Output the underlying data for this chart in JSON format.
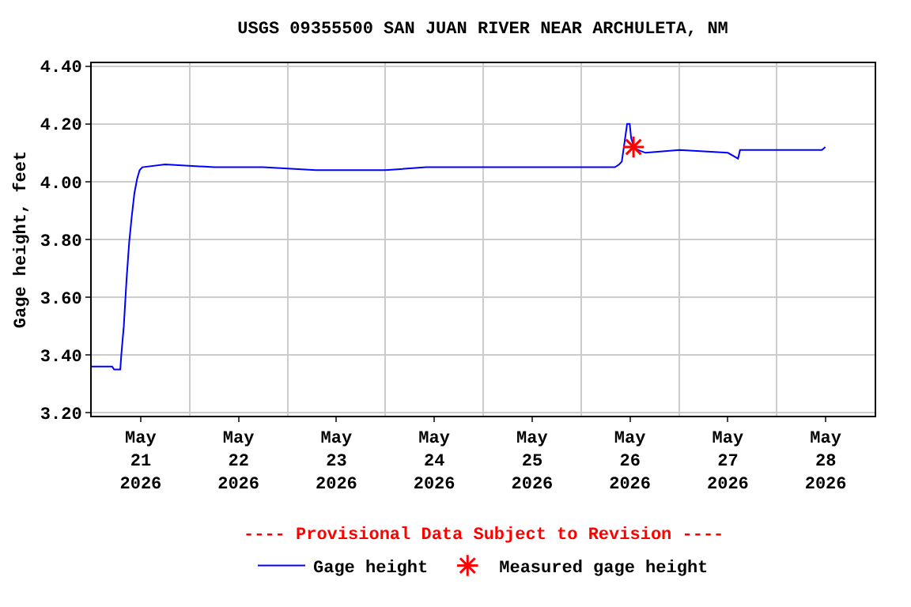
{
  "chart_data": {
    "type": "line",
    "title": "USGS 09355500 SAN JUAN RIVER NEAR ARCHULETA, NM",
    "ylabel": "Gage height, feet",
    "annotations": [
      "---- Provisional Data Subject to Revision ----"
    ],
    "xlim": [
      "2026-05-21T00:00",
      "2026-05-29T00:00"
    ],
    "xticks": [
      {
        "value": "2026-05-21T12:00",
        "label": "May\n21\n2026"
      },
      {
        "value": "2026-05-22T12:00",
        "label": "May\n22\n2026"
      },
      {
        "value": "2026-05-23T12:00",
        "label": "May\n23\n2026"
      },
      {
        "value": "2026-05-24T12:00",
        "label": "May\n24\n2026"
      },
      {
        "value": "2026-05-25T12:00",
        "label": "May\n25\n2026"
      },
      {
        "value": "2026-05-26T12:00",
        "label": "May\n26\n2026"
      },
      {
        "value": "2026-05-27T12:00",
        "label": "May\n27\n2026"
      },
      {
        "value": "2026-05-28T12:00",
        "label": "May\n28\n2026"
      },
      {
        "value": "2026-05-22T00:00",
        "label": null
      },
      {
        "value": "2026-05-23T00:00",
        "label": null
      },
      {
        "value": "2026-05-24T00:00",
        "label": null
      },
      {
        "value": "2026-05-25T00:00",
        "label": null
      },
      {
        "value": "2026-05-26T00:00",
        "label": null
      },
      {
        "value": "2026-05-27T00:00",
        "label": null
      },
      {
        "value": "2026-05-28T00:00",
        "label": null
      }
    ],
    "ylim": [
      3.19,
      4.41
    ],
    "yticks": [
      {
        "value": 3.2,
        "label": "3.20"
      },
      {
        "value": 3.4,
        "label": "3.40"
      },
      {
        "value": 3.6,
        "label": "3.60"
      },
      {
        "value": 3.8,
        "label": "3.80"
      },
      {
        "value": 4.0,
        "label": "4.00"
      },
      {
        "value": 4.2,
        "label": "4.20"
      },
      {
        "value": 4.4,
        "label": "4.40"
      }
    ],
    "grid": true,
    "legend": "bottom",
    "series": [
      {
        "name": "Gage height",
        "color": "#0000ff",
        "marker": "none",
        "line_style": "solid",
        "x": [
          "2026-05-21T00:00",
          "2026-05-21T05:00",
          "2026-05-21T05:30",
          "2026-05-21T07:00",
          "2026-05-21T07:15",
          "2026-05-21T07:52",
          "2026-05-21T08:32",
          "2026-05-21T09:11",
          "2026-05-21T09:49",
          "2026-05-21T10:28",
          "2026-05-21T11:08",
          "2026-05-21T11:45",
          "2026-05-21T12:24",
          "2026-05-21T18:00",
          "2026-05-22T06:00",
          "2026-05-22T18:00",
          "2026-05-23T07:00",
          "2026-05-24T00:00",
          "2026-05-24T10:00",
          "2026-05-25T12:00",
          "2026-05-26T08:18",
          "2026-05-26T09:22",
          "2026-05-26T10:00",
          "2026-05-26T11:18",
          "2026-05-26T11:56",
          "2026-05-26T12:18",
          "2026-05-26T13:00",
          "2026-05-26T13:54",
          "2026-05-26T15:48",
          "2026-05-27T00:12",
          "2026-05-27T12:00",
          "2026-05-27T14:30",
          "2026-05-27T15:00",
          "2026-05-28T11:06",
          "2026-05-28T11:54"
        ],
        "values": [
          3.36,
          3.36,
          3.35,
          3.35,
          3.4,
          3.5,
          3.66,
          3.79,
          3.88,
          3.96,
          4.01,
          4.04,
          4.05,
          4.06,
          4.05,
          4.05,
          4.04,
          4.04,
          4.05,
          4.05,
          4.05,
          4.06,
          4.07,
          4.2,
          4.2,
          4.15,
          4.12,
          4.11,
          4.1,
          4.11,
          4.1,
          4.08,
          4.11,
          4.11,
          4.12
        ]
      },
      {
        "name": "Measured gage height",
        "color": "#ff0000",
        "type": "scatter",
        "marker": "cross",
        "x": [
          "2026-05-26T12:52"
        ],
        "values": [
          4.12
        ]
      }
    ]
  }
}
